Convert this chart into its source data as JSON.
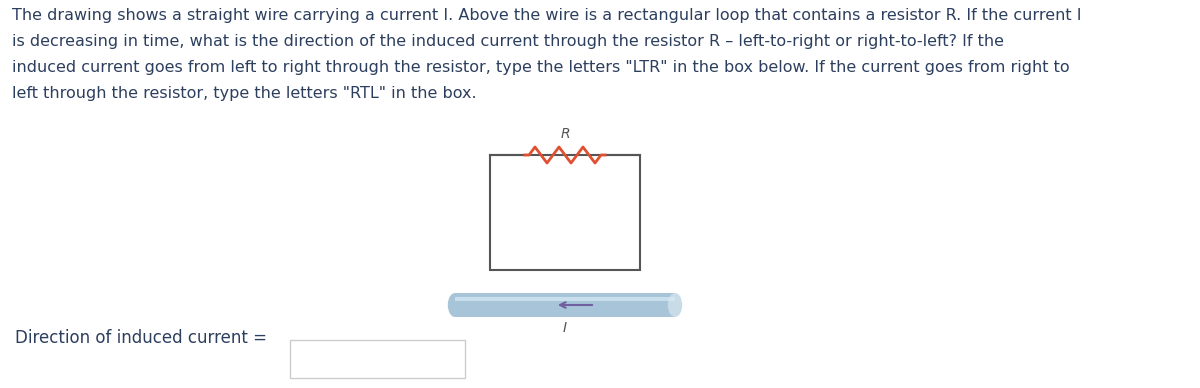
{
  "text_color": "#2d3f5f",
  "paragraph_line1": "The drawing shows a straight wire carrying a current I. Above the wire is a rectangular loop that contains a resistor R. If the current I",
  "paragraph_line2": "is decreasing in time, what is the direction of the induced current through the resistor R – left-to-right or right-to-left? If the",
  "paragraph_line3": "induced current goes from left to right through the resistor, type the letters \"LTR\" in the box below. If the current goes from right to",
  "paragraph_line4": "left through the resistor, type the letters \"RTL\" in the box.",
  "paragraph_fontsize": 11.5,
  "label_direction": "Direction of induced current =",
  "label_fontsize": 12,
  "resistor_color": "#e05030",
  "wire_color_main": "#a8c4d8",
  "wire_color_light": "#c8dce8",
  "wire_arrow_color": "#7060a0",
  "loop_edge_color": "#555555",
  "R_label_color": "#555555",
  "I_label_color": "#555555",
  "answer_box_color": "#cccccc"
}
